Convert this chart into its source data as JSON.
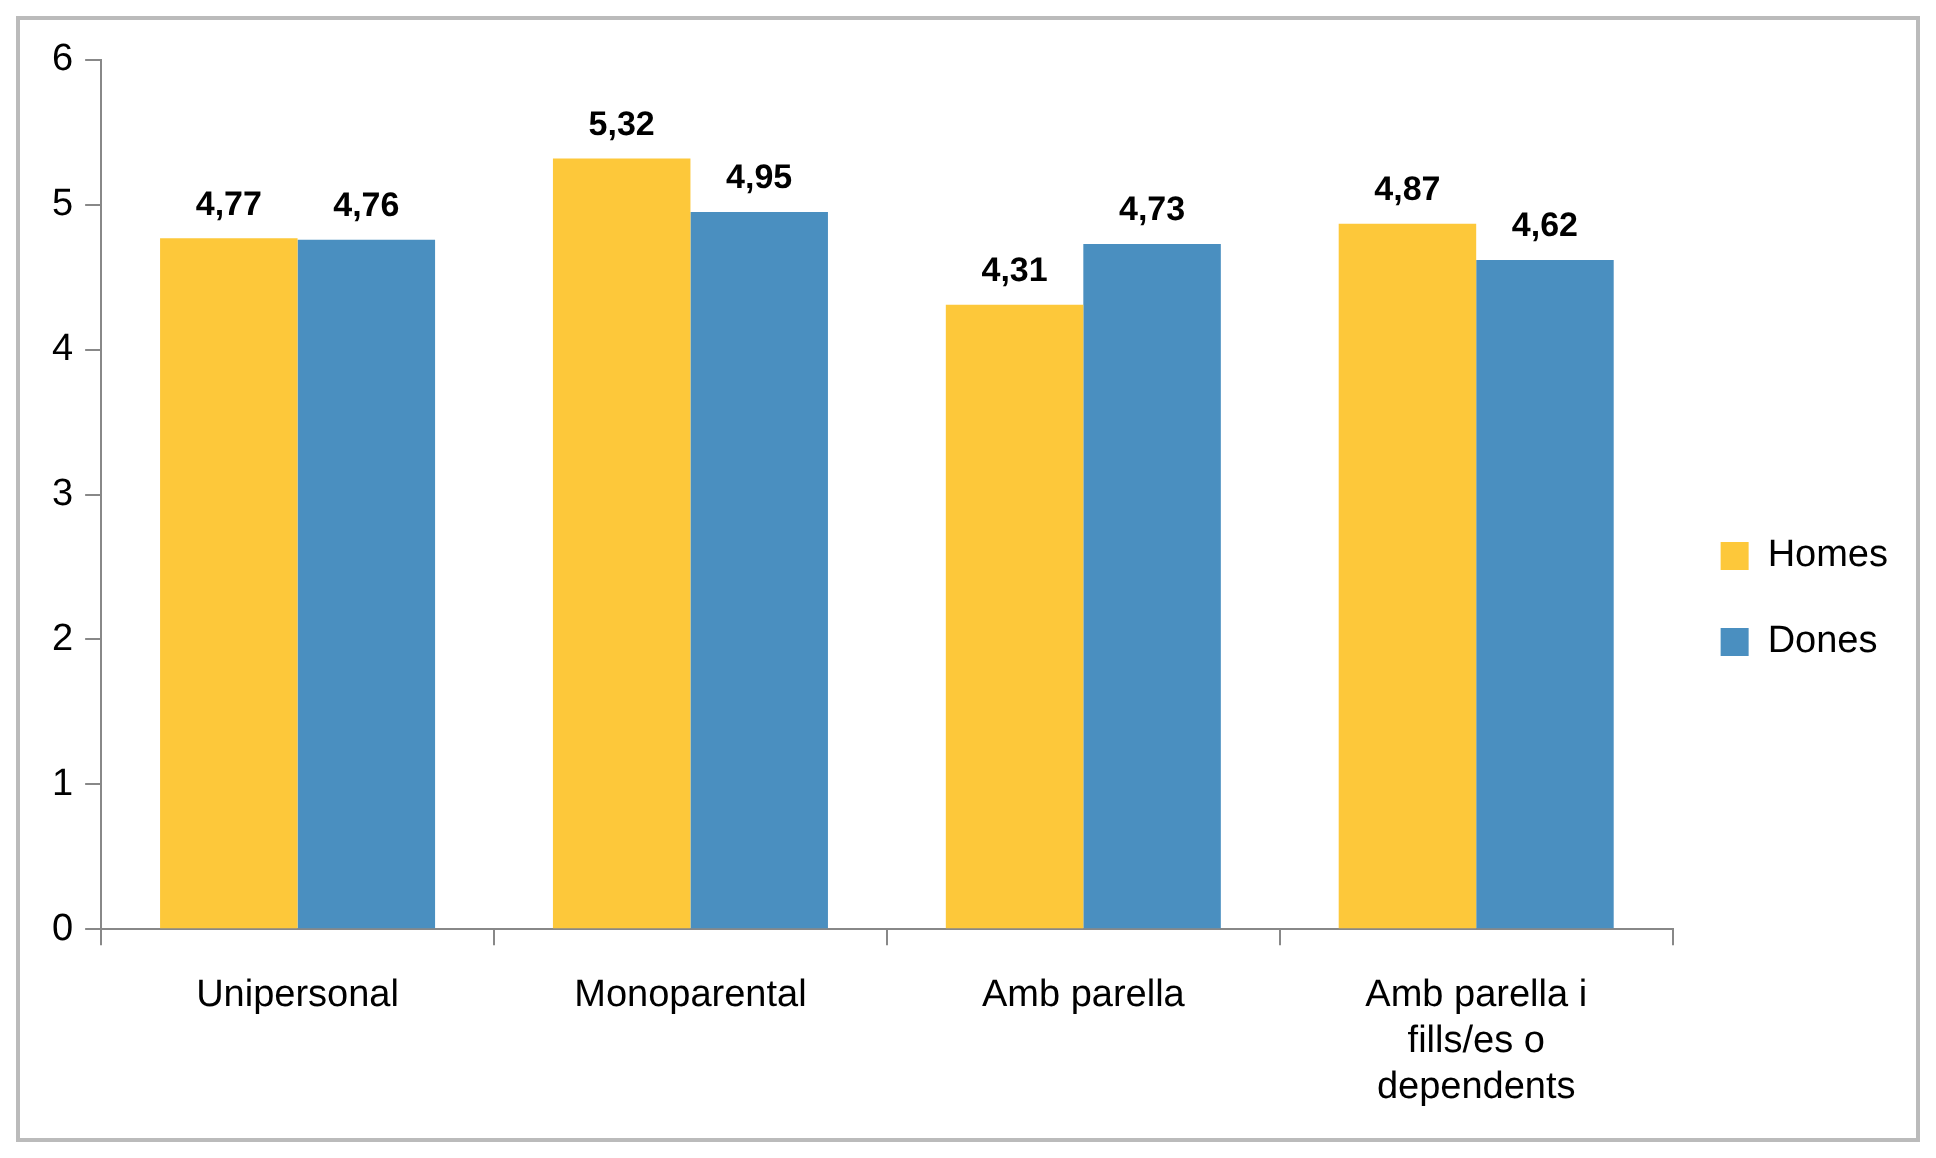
{
  "chart_data": {
    "type": "bar",
    "categories": [
      "Unipersonal",
      "Monoparental",
      "Amb parella",
      "Amb parella i fills/es o dependents"
    ],
    "series": [
      {
        "name": "Homes",
        "color": "#fdc83a",
        "values": [
          4.77,
          5.32,
          4.31,
          4.87
        ],
        "value_labels": [
          "4,77",
          "5,32",
          "4,31",
          "4,87"
        ]
      },
      {
        "name": "Dones",
        "color": "#4a8fc0",
        "values": [
          4.76,
          4.95,
          4.73,
          4.62
        ],
        "value_labels": [
          "4,76",
          "4,95",
          "4,73",
          "4,62"
        ]
      }
    ],
    "ylim": [
      0,
      6
    ],
    "yticks": [
      0,
      1,
      2,
      3,
      4,
      5,
      6
    ],
    "grid": false,
    "legend": "right"
  }
}
